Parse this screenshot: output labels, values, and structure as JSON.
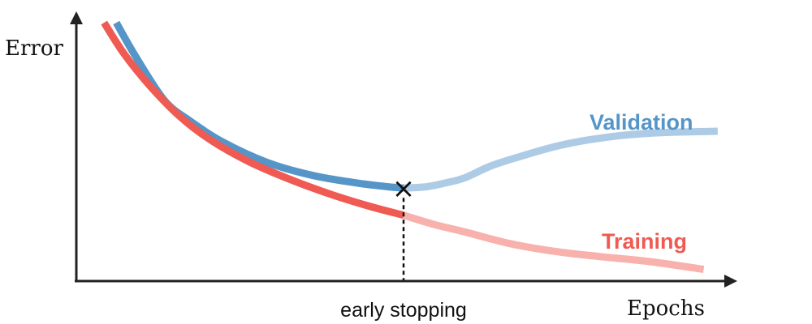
{
  "chart_data": {
    "type": "line",
    "title": "",
    "xlabel": "Epochs",
    "ylabel": "Error",
    "xlim": [
      0,
      100
    ],
    "ylim": [
      0,
      100
    ],
    "grid": false,
    "legend": "none",
    "series": [
      {
        "name": "Validation",
        "color": "#5595c8",
        "faded_color": "#aecbe6",
        "points": [
          [
            6.5,
            100
          ],
          [
            9.5,
            87
          ],
          [
            14,
            70
          ],
          [
            18,
            62
          ],
          [
            23,
            54
          ],
          [
            30,
            46
          ],
          [
            37,
            41
          ],
          [
            44,
            38
          ],
          [
            49,
            36.5
          ],
          [
            51.4,
            36
          ],
          [
            55,
            36.5
          ],
          [
            58,
            38
          ],
          [
            61,
            40
          ],
          [
            65,
            44.5
          ],
          [
            70,
            48.5
          ],
          [
            75,
            52
          ],
          [
            80,
            54.5
          ],
          [
            86,
            56.5
          ],
          [
            92,
            57.5
          ],
          [
            100.5,
            58
          ]
        ]
      },
      {
        "name": "Training",
        "color": "#ef5a52",
        "faded_color": "#f8b1ac",
        "points": [
          [
            4.6,
            100
          ],
          [
            7.7,
            88
          ],
          [
            11.6,
            76
          ],
          [
            16.3,
            64
          ],
          [
            21,
            55
          ],
          [
            27,
            46.5
          ],
          [
            33,
            40
          ],
          [
            39.5,
            34
          ],
          [
            46,
            29
          ],
          [
            51.4,
            25.5
          ],
          [
            56,
            22
          ],
          [
            61,
            19
          ],
          [
            68,
            14.5
          ],
          [
            75,
            11.5
          ],
          [
            82,
            9.5
          ],
          [
            90,
            7.5
          ],
          [
            98.3,
            4.5
          ]
        ]
      }
    ],
    "annotations": {
      "early_stopping": {
        "x": 51.4,
        "label": "early stopping",
        "marker": "×"
      }
    }
  }
}
